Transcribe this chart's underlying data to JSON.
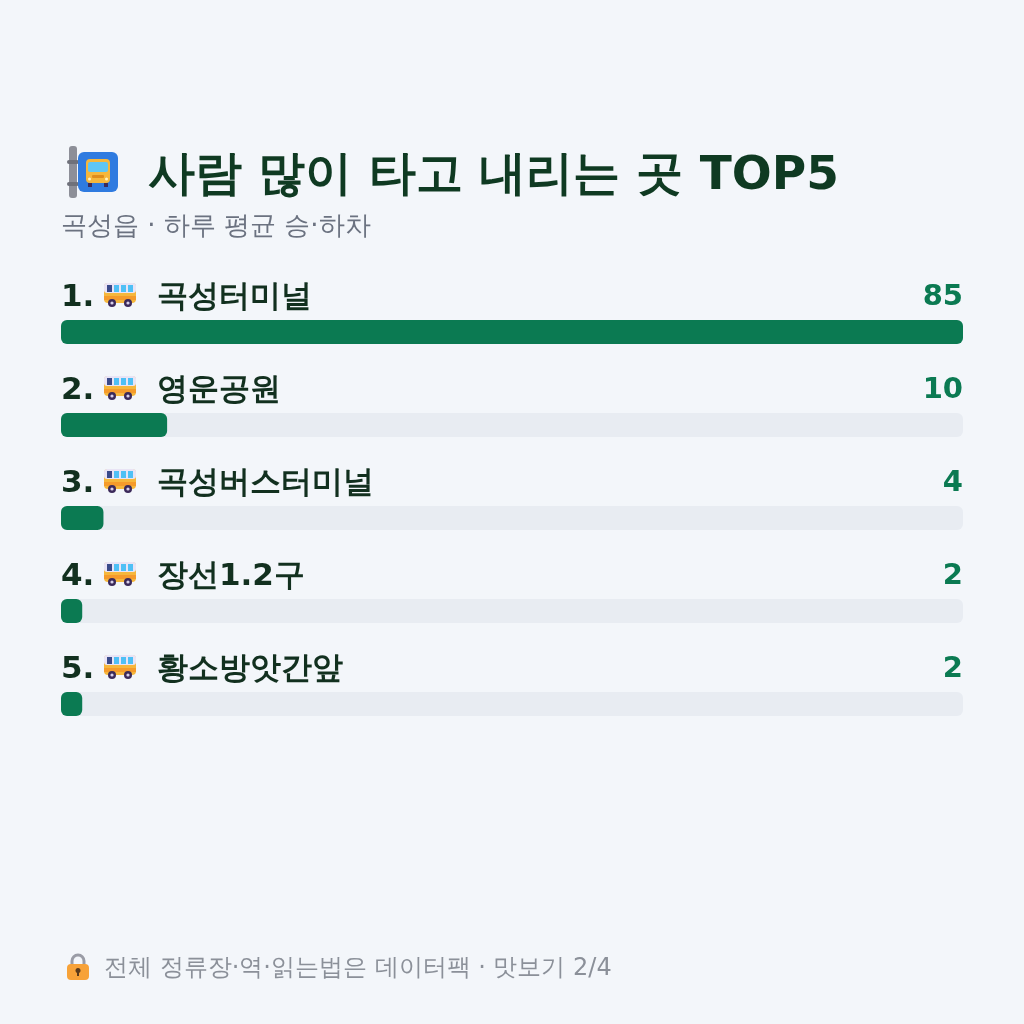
{
  "chart_data": {
    "type": "bar",
    "orientation": "horizontal",
    "title": "사람 많이 타고 내리는 곳 TOP5",
    "subtitle": "곡성읍 · 하루 평균 승·하차",
    "categories": [
      "1. 곡성터미널",
      "2. 영운공원",
      "3. 곡성버스터미널",
      "4. 장선1.2구",
      "5. 황소방앗간앞"
    ],
    "values": [
      85,
      10,
      4,
      2,
      2
    ],
    "color": "#0b7a52",
    "data_labels": true,
    "tick_labels": "y",
    "annotations": [
      "전체 정류장·역·읽는법은 데이터팩 · 맛보기 2/4"
    ]
  }
}
